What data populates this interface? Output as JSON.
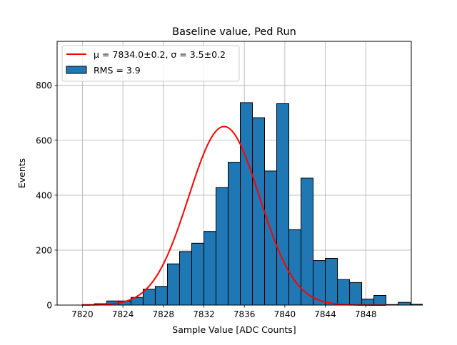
{
  "colors": {
    "bar_fill": "#1f77b4",
    "bar_edge": "#000000",
    "fit_line": "#ff0000",
    "grid": "#b0b0b0"
  },
  "chart_data": {
    "type": "bar",
    "subtype": "histogram",
    "title": "Baseline value, Ped Run",
    "xlabel": "Sample Value [ADC Counts]",
    "ylabel": "Events",
    "xlim": [
      7817.5,
      7852.5
    ],
    "ylim": [
      0,
      960
    ],
    "xticks": [
      7820,
      7824,
      7828,
      7832,
      7836,
      7840,
      7844,
      7848
    ],
    "yticks": [
      0,
      200,
      400,
      600,
      800
    ],
    "grid": true,
    "legend_position": "upper-left",
    "bin_width": 1.2,
    "bin_edges_start": 7820.0,
    "counts": [
      2,
      5,
      15,
      15,
      28,
      58,
      68,
      150,
      195,
      225,
      268,
      428,
      520,
      737,
      682,
      488,
      733,
      275,
      462,
      162,
      170,
      93,
      82,
      22,
      35,
      2,
      10,
      3,
      0
    ],
    "fit": {
      "name": "μ = 7834.0±0.2, σ = 3.5±0.2",
      "mu": 7834.0,
      "sigma": 3.5,
      "amplitude": 650,
      "x_range": [
        7820,
        7850
      ]
    },
    "histogram_label": "RMS = 3.9"
  }
}
